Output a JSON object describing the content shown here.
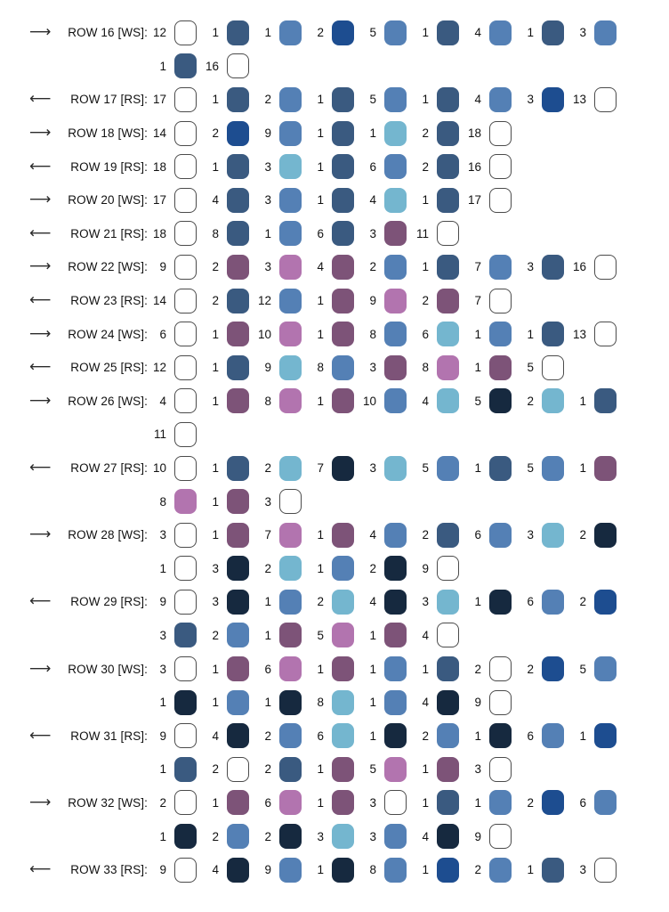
{
  "palette": {
    "white": "#FFFFFF",
    "darkslate": "#3A5A80",
    "medblue": "#5480B5",
    "royal": "#1D4D90",
    "lightcyan": "#74B6CF",
    "purple": "#7D5378",
    "orchid": "#B274AF",
    "verydark": "#16293F"
  },
  "arrows": {
    "right": "⟶",
    "left": "⟵"
  },
  "rows": [
    {
      "label": "ROW 16 [WS]:",
      "direction": "right",
      "lines": [
        [
          [
            "12",
            "white"
          ],
          [
            "1",
            "darkslate"
          ],
          [
            "1",
            "medblue"
          ],
          [
            "2",
            "royal"
          ],
          [
            "5",
            "medblue"
          ],
          [
            "1",
            "darkslate"
          ],
          [
            "4",
            "medblue"
          ],
          [
            "1",
            "darkslate"
          ],
          [
            "3",
            "medblue"
          ]
        ],
        [
          [
            "1",
            "darkslate"
          ],
          [
            "16",
            "white"
          ]
        ]
      ]
    },
    {
      "label": "ROW 17 [RS]:",
      "direction": "left",
      "lines": [
        [
          [
            "17",
            "white"
          ],
          [
            "1",
            "darkslate"
          ],
          [
            "2",
            "medblue"
          ],
          [
            "1",
            "darkslate"
          ],
          [
            "5",
            "medblue"
          ],
          [
            "1",
            "darkslate"
          ],
          [
            "4",
            "medblue"
          ],
          [
            "3",
            "royal"
          ],
          [
            "13",
            "white"
          ]
        ]
      ]
    },
    {
      "label": "ROW 18 [WS]:",
      "direction": "right",
      "lines": [
        [
          [
            "14",
            "white"
          ],
          [
            "2",
            "royal"
          ],
          [
            "9",
            "medblue"
          ],
          [
            "1",
            "darkslate"
          ],
          [
            "1",
            "lightcyan"
          ],
          [
            "2",
            "darkslate"
          ],
          [
            "18",
            "white"
          ]
        ]
      ]
    },
    {
      "label": "ROW 19 [RS]:",
      "direction": "left",
      "lines": [
        [
          [
            "18",
            "white"
          ],
          [
            "1",
            "darkslate"
          ],
          [
            "3",
            "lightcyan"
          ],
          [
            "1",
            "darkslate"
          ],
          [
            "6",
            "medblue"
          ],
          [
            "2",
            "darkslate"
          ],
          [
            "16",
            "white"
          ]
        ]
      ]
    },
    {
      "label": "ROW 20 [WS]:",
      "direction": "right",
      "lines": [
        [
          [
            "17",
            "white"
          ],
          [
            "4",
            "darkslate"
          ],
          [
            "3",
            "medblue"
          ],
          [
            "1",
            "darkslate"
          ],
          [
            "4",
            "lightcyan"
          ],
          [
            "1",
            "darkslate"
          ],
          [
            "17",
            "white"
          ]
        ]
      ]
    },
    {
      "label": "ROW 21 [RS]:",
      "direction": "left",
      "lines": [
        [
          [
            "18",
            "white"
          ],
          [
            "8",
            "darkslate"
          ],
          [
            "1",
            "medblue"
          ],
          [
            "6",
            "darkslate"
          ],
          [
            "3",
            "purple"
          ],
          [
            "11",
            "white"
          ]
        ]
      ]
    },
    {
      "label": "ROW 22 [WS]:",
      "direction": "right",
      "lines": [
        [
          [
            "9",
            "white"
          ],
          [
            "2",
            "purple"
          ],
          [
            "3",
            "orchid"
          ],
          [
            "4",
            "purple"
          ],
          [
            "2",
            "medblue"
          ],
          [
            "1",
            "darkslate"
          ],
          [
            "7",
            "medblue"
          ],
          [
            "3",
            "darkslate"
          ],
          [
            "16",
            "white"
          ]
        ]
      ]
    },
    {
      "label": "ROW 23 [RS]:",
      "direction": "left",
      "lines": [
        [
          [
            "14",
            "white"
          ],
          [
            "2",
            "darkslate"
          ],
          [
            "12",
            "medblue"
          ],
          [
            "1",
            "purple"
          ],
          [
            "9",
            "orchid"
          ],
          [
            "2",
            "purple"
          ],
          [
            "7",
            "white"
          ]
        ]
      ]
    },
    {
      "label": "ROW 24 [WS]:",
      "direction": "right",
      "lines": [
        [
          [
            "6",
            "white"
          ],
          [
            "1",
            "purple"
          ],
          [
            "10",
            "orchid"
          ],
          [
            "1",
            "purple"
          ],
          [
            "8",
            "medblue"
          ],
          [
            "6",
            "lightcyan"
          ],
          [
            "1",
            "medblue"
          ],
          [
            "1",
            "darkslate"
          ],
          [
            "13",
            "white"
          ]
        ]
      ]
    },
    {
      "label": "ROW 25 [RS]:",
      "direction": "left",
      "lines": [
        [
          [
            "12",
            "white"
          ],
          [
            "1",
            "darkslate"
          ],
          [
            "9",
            "lightcyan"
          ],
          [
            "8",
            "medblue"
          ],
          [
            "3",
            "purple"
          ],
          [
            "8",
            "orchid"
          ],
          [
            "1",
            "purple"
          ],
          [
            "5",
            "white"
          ]
        ]
      ]
    },
    {
      "label": "ROW 26 [WS]:",
      "direction": "right",
      "lines": [
        [
          [
            "4",
            "white"
          ],
          [
            "1",
            "purple"
          ],
          [
            "8",
            "orchid"
          ],
          [
            "1",
            "purple"
          ],
          [
            "10",
            "medblue"
          ],
          [
            "4",
            "lightcyan"
          ],
          [
            "5",
            "verydark"
          ],
          [
            "2",
            "lightcyan"
          ],
          [
            "1",
            "darkslate"
          ]
        ],
        [
          [
            "11",
            "white"
          ]
        ]
      ]
    },
    {
      "label": "ROW 27 [RS]:",
      "direction": "left",
      "lines": [
        [
          [
            "10",
            "white"
          ],
          [
            "1",
            "darkslate"
          ],
          [
            "2",
            "lightcyan"
          ],
          [
            "7",
            "verydark"
          ],
          [
            "3",
            "lightcyan"
          ],
          [
            "5",
            "medblue"
          ],
          [
            "1",
            "darkslate"
          ],
          [
            "5",
            "medblue"
          ],
          [
            "1",
            "purple"
          ]
        ],
        [
          [
            "8",
            "orchid"
          ],
          [
            "1",
            "purple"
          ],
          [
            "3",
            "white"
          ]
        ]
      ]
    },
    {
      "label": "ROW 28 [WS]:",
      "direction": "right",
      "lines": [
        [
          [
            "3",
            "white"
          ],
          [
            "1",
            "purple"
          ],
          [
            "7",
            "orchid"
          ],
          [
            "1",
            "purple"
          ],
          [
            "4",
            "medblue"
          ],
          [
            "2",
            "darkslate"
          ],
          [
            "6",
            "medblue"
          ],
          [
            "3",
            "lightcyan"
          ],
          [
            "2",
            "verydark"
          ]
        ],
        [
          [
            "1",
            "white"
          ],
          [
            "3",
            "verydark"
          ],
          [
            "2",
            "lightcyan"
          ],
          [
            "1",
            "medblue"
          ],
          [
            "2",
            "verydark"
          ],
          [
            "9",
            "white"
          ]
        ]
      ]
    },
    {
      "label": "ROW 29 [RS]:",
      "direction": "left",
      "lines": [
        [
          [
            "9",
            "white"
          ],
          [
            "3",
            "verydark"
          ],
          [
            "1",
            "medblue"
          ],
          [
            "2",
            "lightcyan"
          ],
          [
            "4",
            "verydark"
          ],
          [
            "3",
            "lightcyan"
          ],
          [
            "1",
            "verydark"
          ],
          [
            "6",
            "medblue"
          ],
          [
            "2",
            "royal"
          ]
        ],
        [
          [
            "3",
            "darkslate"
          ],
          [
            "2",
            "medblue"
          ],
          [
            "1",
            "purple"
          ],
          [
            "5",
            "orchid"
          ],
          [
            "1",
            "purple"
          ],
          [
            "4",
            "white"
          ]
        ]
      ]
    },
    {
      "label": "ROW 30 [WS]:",
      "direction": "right",
      "lines": [
        [
          [
            "3",
            "white"
          ],
          [
            "1",
            "purple"
          ],
          [
            "6",
            "orchid"
          ],
          [
            "1",
            "purple"
          ],
          [
            "1",
            "medblue"
          ],
          [
            "1",
            "darkslate"
          ],
          [
            "2",
            "white"
          ],
          [
            "2",
            "royal"
          ],
          [
            "5",
            "medblue"
          ]
        ],
        [
          [
            "1",
            "verydark"
          ],
          [
            "1",
            "medblue"
          ],
          [
            "1",
            "verydark"
          ],
          [
            "8",
            "lightcyan"
          ],
          [
            "1",
            "medblue"
          ],
          [
            "4",
            "verydark"
          ],
          [
            "9",
            "white"
          ]
        ]
      ]
    },
    {
      "label": "ROW 31 [RS]:",
      "direction": "left",
      "lines": [
        [
          [
            "9",
            "white"
          ],
          [
            "4",
            "verydark"
          ],
          [
            "2",
            "medblue"
          ],
          [
            "6",
            "lightcyan"
          ],
          [
            "1",
            "verydark"
          ],
          [
            "2",
            "medblue"
          ],
          [
            "1",
            "verydark"
          ],
          [
            "6",
            "medblue"
          ],
          [
            "1",
            "royal"
          ]
        ],
        [
          [
            "1",
            "darkslate"
          ],
          [
            "2",
            "white"
          ],
          [
            "2",
            "darkslate"
          ],
          [
            "1",
            "purple"
          ],
          [
            "5",
            "orchid"
          ],
          [
            "1",
            "purple"
          ],
          [
            "3",
            "white"
          ]
        ]
      ]
    },
    {
      "label": "ROW 32 [WS]:",
      "direction": "right",
      "lines": [
        [
          [
            "2",
            "white"
          ],
          [
            "1",
            "purple"
          ],
          [
            "6",
            "orchid"
          ],
          [
            "1",
            "purple"
          ],
          [
            "3",
            "white"
          ],
          [
            "1",
            "darkslate"
          ],
          [
            "1",
            "medblue"
          ],
          [
            "2",
            "royal"
          ],
          [
            "6",
            "medblue"
          ]
        ],
        [
          [
            "1",
            "verydark"
          ],
          [
            "2",
            "medblue"
          ],
          [
            "2",
            "verydark"
          ],
          [
            "3",
            "lightcyan"
          ],
          [
            "3",
            "medblue"
          ],
          [
            "4",
            "verydark"
          ],
          [
            "9",
            "white"
          ]
        ]
      ]
    },
    {
      "label": "ROW 33 [RS]:",
      "direction": "left",
      "lines": [
        [
          [
            "9",
            "white"
          ],
          [
            "4",
            "verydark"
          ],
          [
            "9",
            "medblue"
          ],
          [
            "1",
            "verydark"
          ],
          [
            "8",
            "medblue"
          ],
          [
            "1",
            "royal"
          ],
          [
            "2",
            "medblue"
          ],
          [
            "1",
            "darkslate"
          ],
          [
            "3",
            "white"
          ]
        ]
      ]
    }
  ]
}
